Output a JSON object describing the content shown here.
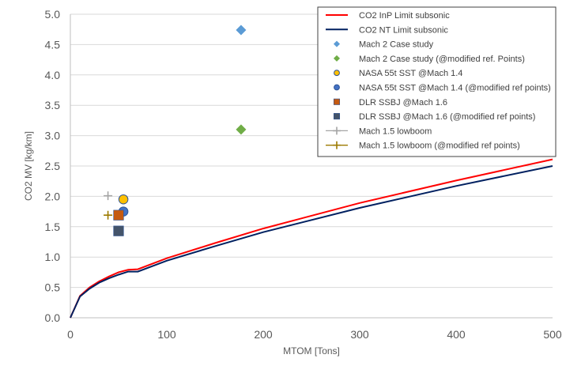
{
  "chart_data": {
    "type": "line",
    "xlabel": "MTOM [Tons]",
    "ylabel": "CO2 MV [kg/km]",
    "xlim": [
      0,
      500
    ],
    "ylim": [
      0,
      5.0
    ],
    "x_ticks": [
      0,
      100,
      200,
      300,
      400,
      500
    ],
    "y_ticks": [
      "0.0",
      "0.5",
      "1.0",
      "1.5",
      "2.0",
      "2.5",
      "3.0",
      "3.5",
      "4.0",
      "4.5",
      "5.0"
    ],
    "grid": "horizontal",
    "legend_position": "top-right",
    "series": [
      {
        "name": "CO2 InP Limit subsonic",
        "kind": "line",
        "color": "#ff0000",
        "x": [
          0,
          10,
          20,
          30,
          40,
          50,
          60,
          70,
          100,
          150,
          200,
          300,
          400,
          500
        ],
        "y": [
          0.0,
          0.36,
          0.5,
          0.6,
          0.68,
          0.75,
          0.79,
          0.8,
          0.98,
          1.23,
          1.47,
          1.89,
          2.26,
          2.61
        ]
      },
      {
        "name": "CO2 NT Limit subsonic",
        "kind": "line",
        "color": "#002060",
        "x": [
          0,
          10,
          20,
          30,
          40,
          50,
          60,
          70,
          100,
          150,
          200,
          300,
          400,
          500
        ],
        "y": [
          0.0,
          0.35,
          0.48,
          0.58,
          0.65,
          0.71,
          0.76,
          0.76,
          0.94,
          1.18,
          1.41,
          1.81,
          2.17,
          2.5
        ]
      },
      {
        "name": "Mach 2 Case study",
        "kind": "marker",
        "marker": "diamond",
        "color": "#5b9bd5",
        "x": [
          177
        ],
        "y": [
          4.74
        ]
      },
      {
        "name": "Mach 2 Case study (@modified ref. Points)",
        "kind": "marker",
        "marker": "diamond",
        "color": "#70ad47",
        "x": [
          177
        ],
        "y": [
          3.1
        ]
      },
      {
        "name": "NASA 55t SST @Mach 1.4",
        "kind": "marker",
        "marker": "circle",
        "color": "#ffc000",
        "x": [
          55
        ],
        "y": [
          1.95
        ]
      },
      {
        "name": "NASA 55t SST @Mach 1.4 (@modified ref points)",
        "kind": "marker",
        "marker": "circle",
        "color": "#4472c4",
        "x": [
          55
        ],
        "y": [
          1.75
        ]
      },
      {
        "name": "DLR SSBJ @Mach 1.6",
        "kind": "marker",
        "marker": "square",
        "color": "#c55a11",
        "x": [
          50
        ],
        "y": [
          1.69
        ]
      },
      {
        "name": "DLR SSBJ @Mach 1.6  (@modified ref points)",
        "kind": "marker",
        "marker": "square",
        "color": "#44546a",
        "x": [
          50
        ],
        "y": [
          1.43
        ]
      },
      {
        "name": "Mach 1.5 lowboom",
        "kind": "marker",
        "marker": "plus",
        "color": "#a5a5a5",
        "x": [
          39
        ],
        "y": [
          2.01
        ]
      },
      {
        "name": "Mach 1.5 lowboom (@modified ref points)",
        "kind": "marker",
        "marker": "plus",
        "color": "#9c7a00",
        "x": [
          39
        ],
        "y": [
          1.69
        ]
      }
    ]
  }
}
